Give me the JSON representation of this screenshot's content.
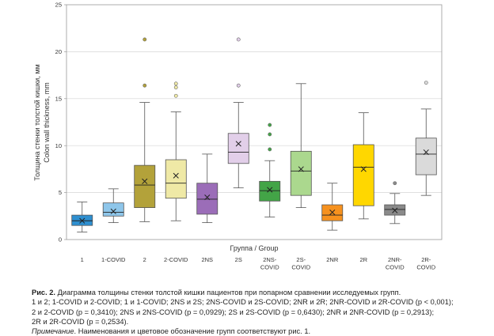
{
  "chart_data": {
    "type": "box",
    "xlabel": "Группа / Group",
    "ylabel_ru": "Толщина стенки толстой кишки, мм",
    "ylabel_en": "Colon wall thickness, mm",
    "ylim": [
      0,
      25
    ],
    "yticks": [
      0,
      5,
      10,
      15,
      20,
      25
    ],
    "grid": "horizontal",
    "categories": [
      "1",
      "1-COVID",
      "2",
      "2-COVID",
      "2NS",
      "2S",
      "2NS-COVID",
      "2S-COVID",
      "2NR",
      "2R",
      "2NR-COVID",
      "2R-COVID"
    ],
    "category_lines": [
      [
        "1"
      ],
      [
        "1-COVID"
      ],
      [
        "2"
      ],
      [
        "2-COVID"
      ],
      [
        "2NS"
      ],
      [
        "2S"
      ],
      [
        "2NS-",
        "COVID"
      ],
      [
        "2S-",
        "COVID"
      ],
      [
        "2NR"
      ],
      [
        "2R"
      ],
      [
        "2NR-",
        "COVID"
      ],
      [
        "2R-",
        "COVID"
      ]
    ],
    "boxes": [
      {
        "group": "1",
        "min": 0.8,
        "q1": 1.5,
        "median": 2.0,
        "q3": 2.6,
        "max": 4.0,
        "mean": 2.0,
        "outliers": [],
        "color": "#2e8fd0"
      },
      {
        "group": "1-COVID",
        "min": 1.8,
        "q1": 2.5,
        "median": 2.9,
        "q3": 3.9,
        "max": 5.4,
        "mean": 3.0,
        "outliers": [],
        "color": "#8ec6ea"
      },
      {
        "group": "2",
        "min": 1.9,
        "q1": 3.4,
        "median": 5.8,
        "q3": 7.9,
        "max": 14.6,
        "mean": 6.2,
        "outliers": [
          16.4,
          21.3
        ],
        "color": "#b3a23a"
      },
      {
        "group": "2-COVID",
        "min": 2.0,
        "q1": 4.4,
        "median": 6.0,
        "q3": 8.5,
        "max": 13.6,
        "mean": 6.8,
        "outliers": [
          15.3,
          16.2,
          16.6
        ],
        "color": "#efe9a6"
      },
      {
        "group": "2NS",
        "min": 1.8,
        "q1": 2.7,
        "median": 4.3,
        "q3": 6.0,
        "max": 9.1,
        "mean": 4.5,
        "outliers": [],
        "color": "#9b6db8"
      },
      {
        "group": "2S",
        "min": 5.5,
        "q1": 8.1,
        "median": 9.3,
        "q3": 11.3,
        "max": 14.6,
        "mean": 10.2,
        "outliers": [
          16.4,
          21.3
        ],
        "color": "#e2cfe9"
      },
      {
        "group": "2NS-COVID",
        "min": 2.4,
        "q1": 4.1,
        "median": 5.2,
        "q3": 6.2,
        "max": 8.4,
        "mean": 5.3,
        "outliers": [
          9.6,
          11.2,
          12.2
        ],
        "color": "#43a447"
      },
      {
        "group": "2S-COVID",
        "min": 3.4,
        "q1": 4.7,
        "median": 7.3,
        "q3": 9.4,
        "max": 16.6,
        "mean": 7.5,
        "outliers": [],
        "color": "#abd88e"
      },
      {
        "group": "2NR",
        "min": 1.0,
        "q1": 2.0,
        "median": 2.6,
        "q3": 3.7,
        "max": 6.0,
        "mean": 2.9,
        "outliers": [],
        "color": "#f6911e"
      },
      {
        "group": "2R",
        "min": 2.2,
        "q1": 3.6,
        "median": 7.7,
        "q3": 10.1,
        "max": 13.5,
        "mean": 7.5,
        "outliers": [],
        "color": "#ffd700"
      },
      {
        "group": "2NR-COVID",
        "min": 1.7,
        "q1": 2.6,
        "median": 3.2,
        "q3": 3.7,
        "max": 4.9,
        "mean": 3.1,
        "outliers": [
          6.0
        ],
        "color": "#8a8a8a"
      },
      {
        "group": "2R-COVID",
        "min": 4.7,
        "q1": 6.9,
        "median": 9.1,
        "q3": 10.8,
        "max": 13.9,
        "mean": 9.3,
        "outliers": [
          16.7
        ],
        "color": "#dadada"
      }
    ]
  },
  "caption": {
    "title_bold": "Рис. 2.",
    "title_text": " Диаграмма толщины стенки толстой кишки пациентов при попарном сравнении исследуемых групп.",
    "line2": "1 и 2; 1-COVID и 2-COVID; 1 и 1-COVID; 2NS и 2S; 2NS-COVID и 2S-COVID; 2NR и 2R; 2NR-COVID и 2R-COVID (p < 0,001);",
    "line3": "2 и 2-COVID (p = 0,3410); 2NS и 2NS-COVID (p = 0,0929); 2S и 2S-COVID (p = 0,6430); 2NR и 2NR-COVID (p = 0,2913);",
    "line4": "2R и 2R-COVID (p = 0,2534).",
    "note_label": "Примечание",
    "note_text": ". Наименования и цветовое обозначение групп соответствуют рис. 1."
  }
}
